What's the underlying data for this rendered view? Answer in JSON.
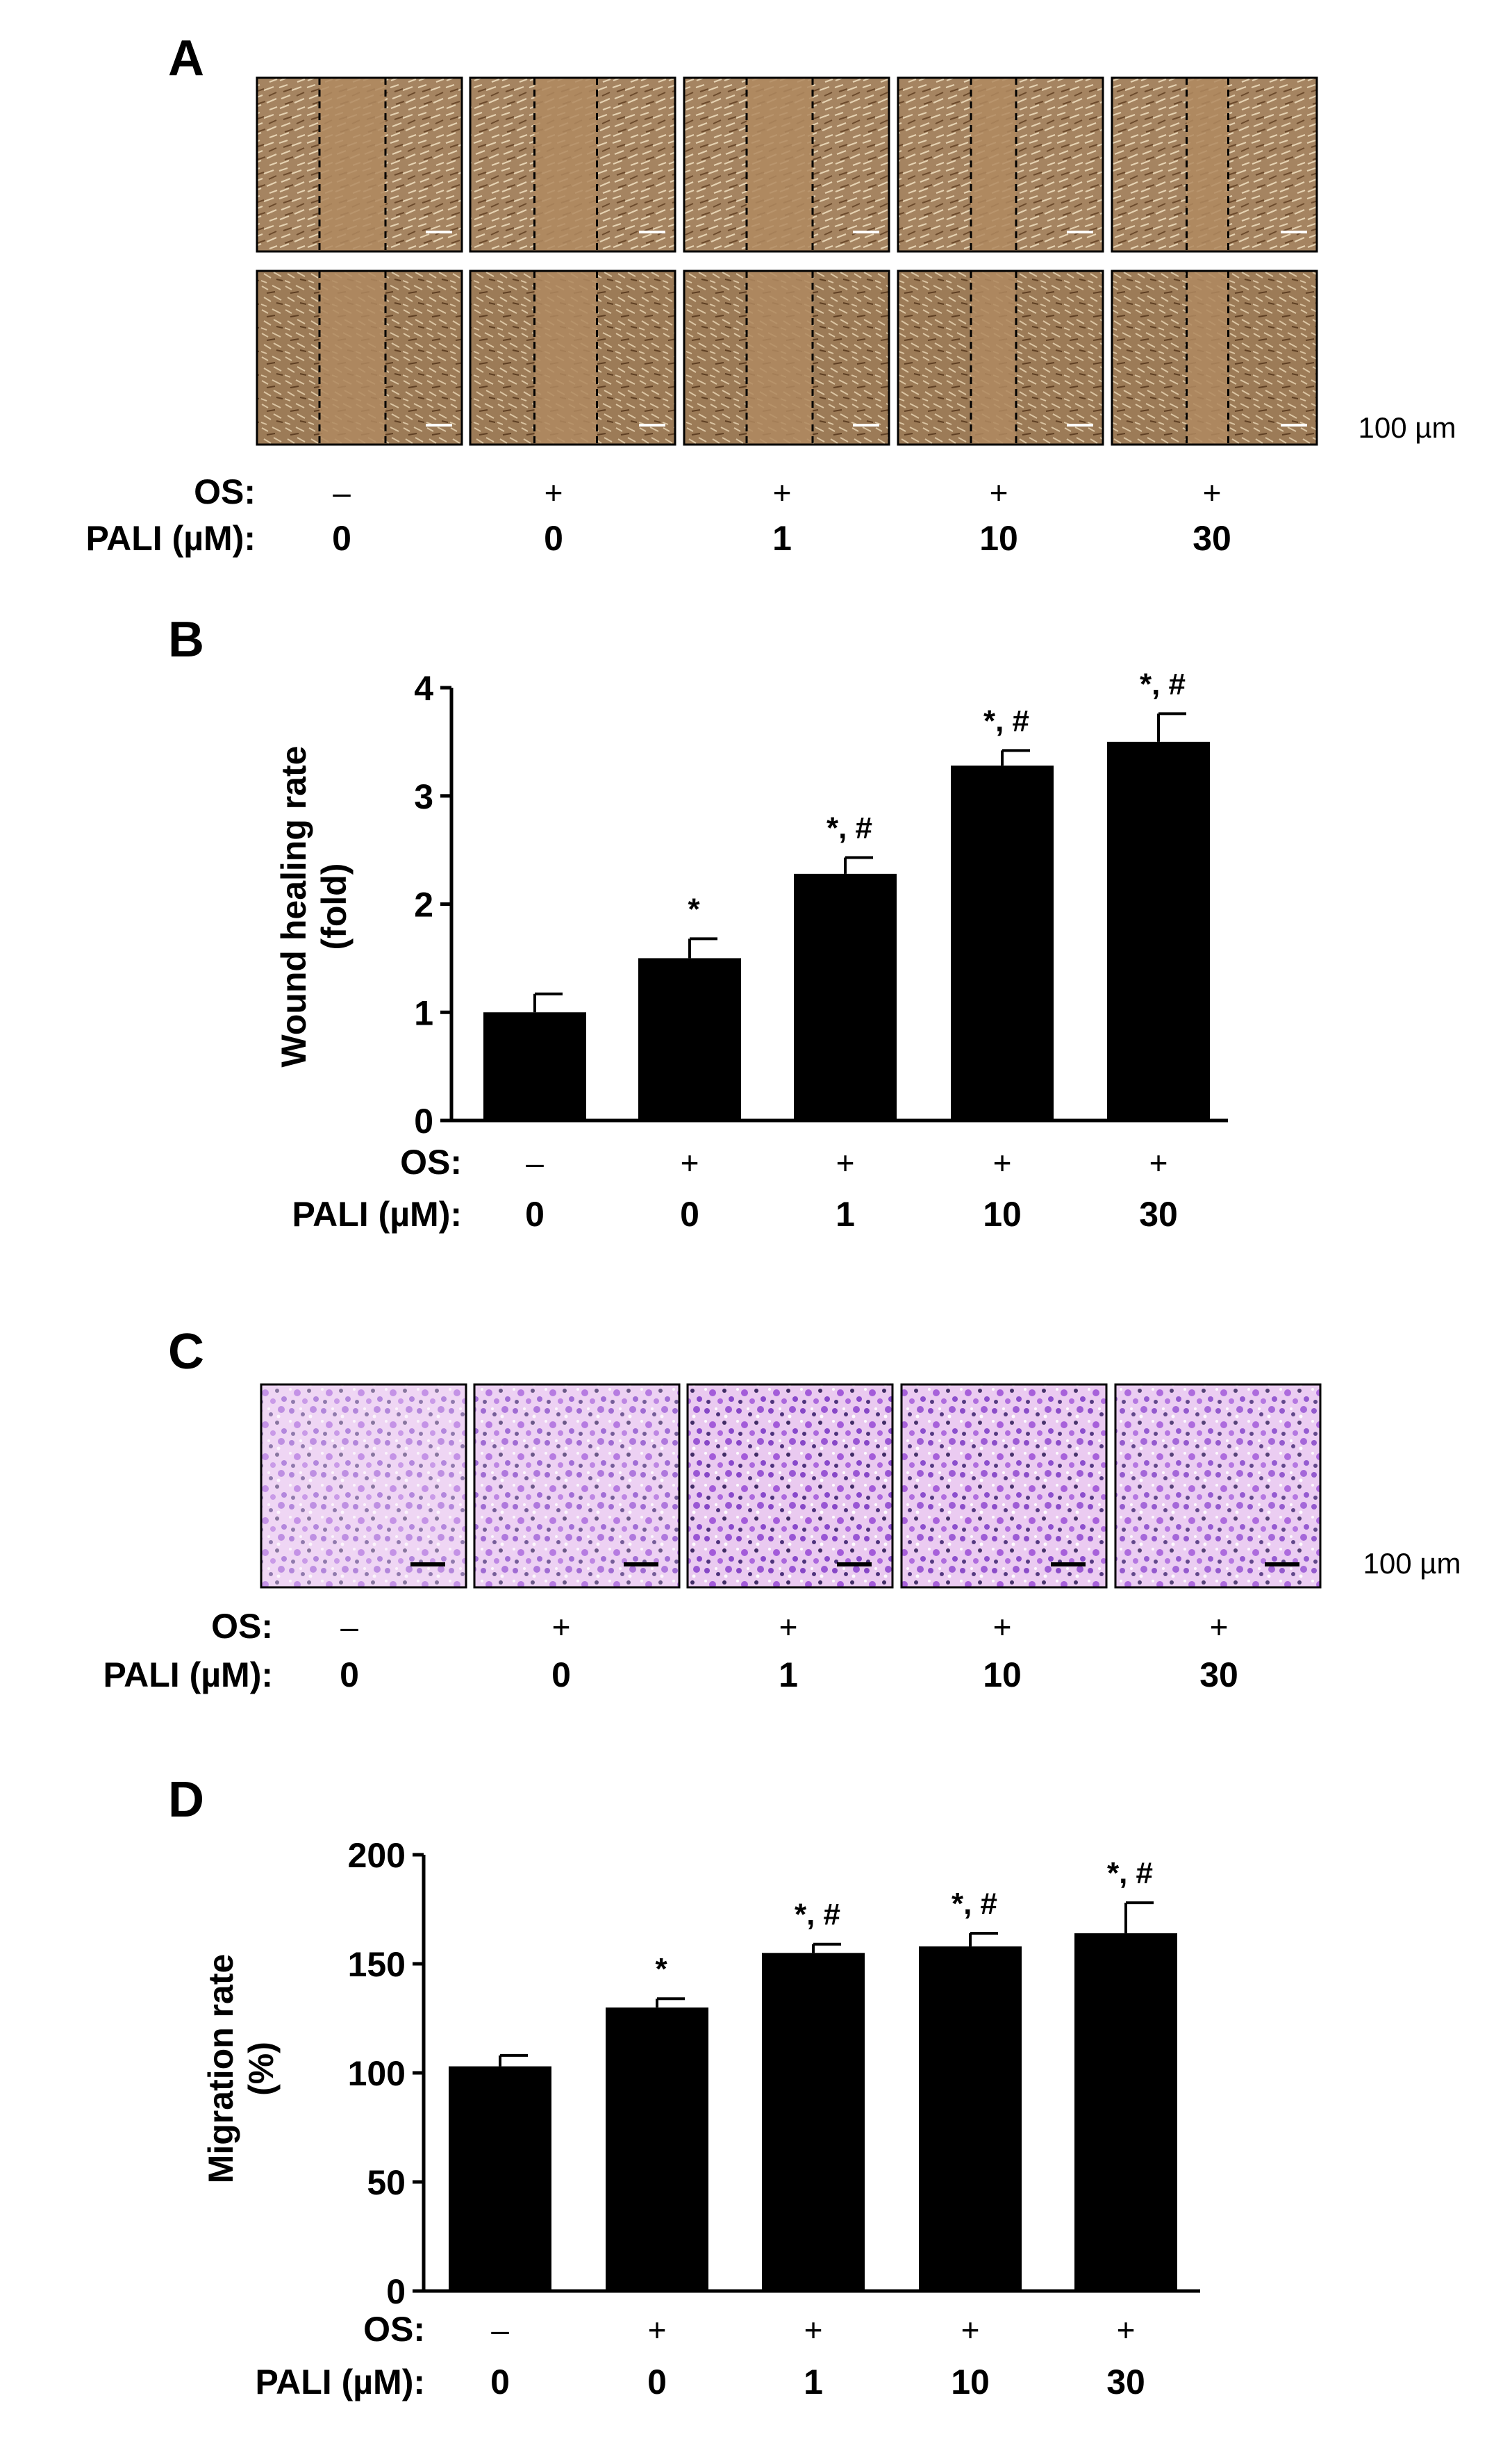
{
  "panels": {
    "A": {
      "letter": "A",
      "scale_label": "100 µm",
      "os_label": "OS:",
      "pali_label": "PALI (µM):",
      "os": [
        "–",
        "+",
        "+",
        "+",
        "+"
      ],
      "pali": [
        "0",
        "0",
        "1",
        "10",
        "30"
      ],
      "image_colors": {
        "base": "#a58461",
        "dark": "#6f4e30",
        "light": "#d9c4a4"
      }
    },
    "C": {
      "letter": "C",
      "scale_label": "100 µm",
      "os_label": "OS:",
      "pali_label": "PALI (µM):",
      "os": [
        "–",
        "+",
        "+",
        "+",
        "+"
      ],
      "pali": [
        "0",
        "0",
        "1",
        "10",
        "30"
      ],
      "image_colors": {
        "base": "#e7c2ef",
        "dark": "#3a1f6b",
        "mid": "#8a3fc9",
        "light": "#f6e9f8"
      },
      "stain_density": [
        0.35,
        0.55,
        0.85,
        0.8,
        0.7
      ]
    }
  },
  "chart_data": [
    {
      "panel": "B",
      "letter": "B",
      "type": "bar",
      "ylabel": "Wound healing rate\n(fold)",
      "ylim": [
        0,
        4
      ],
      "yticks": [
        0,
        1,
        2,
        3,
        4
      ],
      "os_label": "OS:",
      "pali_label": "PALI (µM):",
      "os": [
        "–",
        "+",
        "+",
        "+",
        "+"
      ],
      "categories": [
        "0",
        "0",
        "1",
        "10",
        "30"
      ],
      "values": [
        1.0,
        1.5,
        2.28,
        3.28,
        3.5
      ],
      "errors": [
        0.17,
        0.18,
        0.15,
        0.14,
        0.26
      ],
      "annotations": [
        "",
        "*",
        "*, #",
        "*, #",
        "*, #"
      ],
      "bar_color": "#000000"
    },
    {
      "panel": "D",
      "letter": "D",
      "type": "bar",
      "ylabel": "Migration  rate\n(%)",
      "ylim": [
        0,
        200
      ],
      "yticks": [
        0,
        50,
        100,
        150,
        200
      ],
      "os_label": "OS:",
      "pali_label": "PALI (µM):",
      "os": [
        "–",
        "+",
        "+",
        "+",
        "+"
      ],
      "categories": [
        "0",
        "0",
        "1",
        "10",
        "30"
      ],
      "values": [
        103,
        130,
        155,
        158,
        164
      ],
      "errors": [
        5,
        4,
        4,
        6,
        14
      ],
      "annotations": [
        "",
        "*",
        "*, #",
        "*, #",
        "*, #"
      ],
      "bar_color": "#000000"
    }
  ]
}
